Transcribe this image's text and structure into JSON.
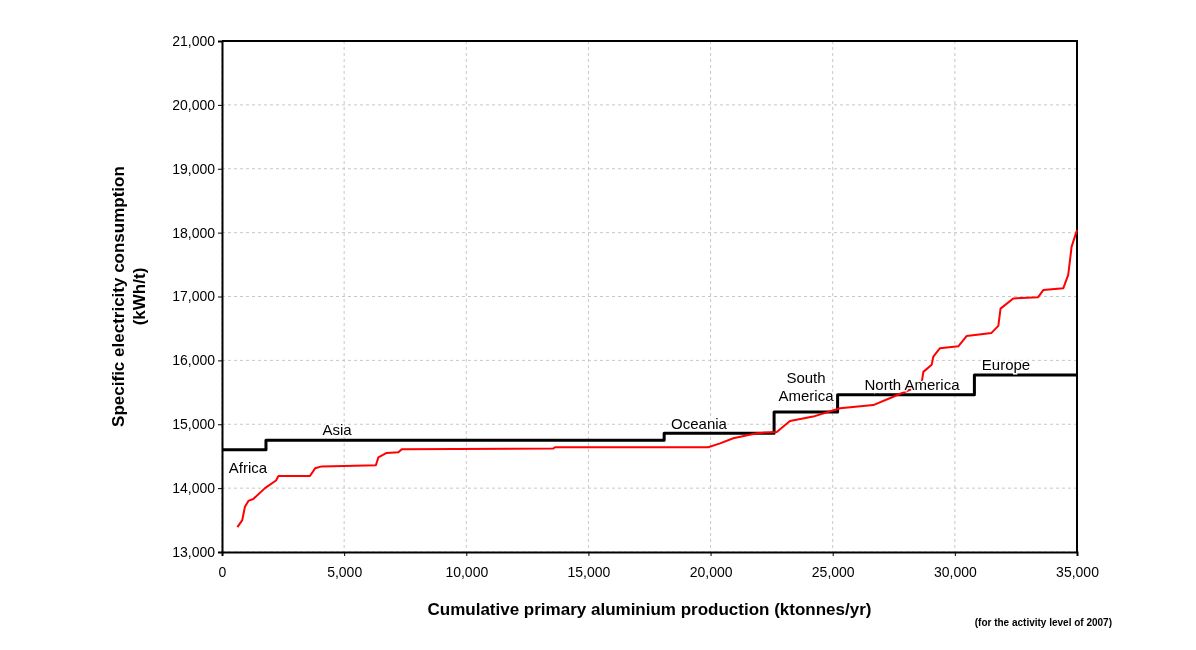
{
  "chart_data": {
    "type": "line",
    "xlabel": "Cumulative primary aluminium production (ktonnes/yr)",
    "ylabel": "Specific electricity consumption\n(kWh/t)",
    "xlim": [
      0,
      35000
    ],
    "xticks": [
      {
        "value": 0,
        "label": "0"
      },
      {
        "value": 5000,
        "label": "5,000"
      },
      {
        "value": 10000,
        "label": "10,000"
      },
      {
        "value": 15000,
        "label": "15,000"
      },
      {
        "value": 20000,
        "label": "20,000"
      },
      {
        "value": 25000,
        "label": "25,000"
      },
      {
        "value": 30000,
        "label": "30,000"
      },
      {
        "value": 35000,
        "label": "35,000"
      }
    ],
    "ylim": [
      13000,
      21000
    ],
    "yticks": [
      {
        "value": 13000,
        "label": "13,000"
      },
      {
        "value": 14000,
        "label": "14,000"
      },
      {
        "value": 15000,
        "label": "15,000"
      },
      {
        "value": 16000,
        "label": "16,000"
      },
      {
        "value": 17000,
        "label": "17,000"
      },
      {
        "value": 18000,
        "label": "18,000"
      },
      {
        "value": 19000,
        "label": "19,000"
      },
      {
        "value": 20000,
        "label": "20,000"
      },
      {
        "value": 21000,
        "label": "21,000"
      }
    ],
    "grid": true,
    "series": [
      {
        "type": "step",
        "color": "#000000",
        "x": [
          0,
          1800,
          18100,
          22600,
          25200,
          30800,
          35000
        ],
        "values": [
          14600,
          14750,
          14860,
          15190,
          15460,
          15770,
          15770
        ]
      },
      {
        "color": "#ff0000",
        "x": [
          630,
          830,
          940,
          1080,
          1280,
          1760,
          2210,
          2310,
          3600,
          3810,
          4080,
          5440,
          6300,
          6400,
          6740,
          7220,
          7360,
          13560,
          13630,
          19900,
          20390,
          20930,
          21890,
          22710,
          23250,
          24200,
          25300,
          26660,
          27480,
          28160,
          28640,
          28710,
          29050,
          29120,
          29390,
          30140,
          30480,
          31500,
          31780,
          31870,
          32390,
          33410,
          33620,
          34440,
          34640,
          34780,
          35000
        ],
        "values": [
          13390,
          13500,
          13710,
          13800,
          13830,
          14000,
          14120,
          14190,
          14190,
          14310,
          14340,
          14350,
          14360,
          14480,
          14550,
          14560,
          14610,
          14620,
          14640,
          14640,
          14700,
          14780,
          14860,
          14880,
          15050,
          15120,
          15250,
          15300,
          15430,
          15540,
          15640,
          15820,
          15930,
          16060,
          16190,
          16220,
          16380,
          16430,
          16540,
          16810,
          16970,
          16990,
          17100,
          17130,
          17340,
          17780,
          18040
        ]
      }
    ],
    "annotations": [
      "Africa",
      "Asia",
      "Oceania",
      "South\nAmerica",
      "North America",
      "Europe",
      "(for the activity level of 2007)"
    ]
  }
}
